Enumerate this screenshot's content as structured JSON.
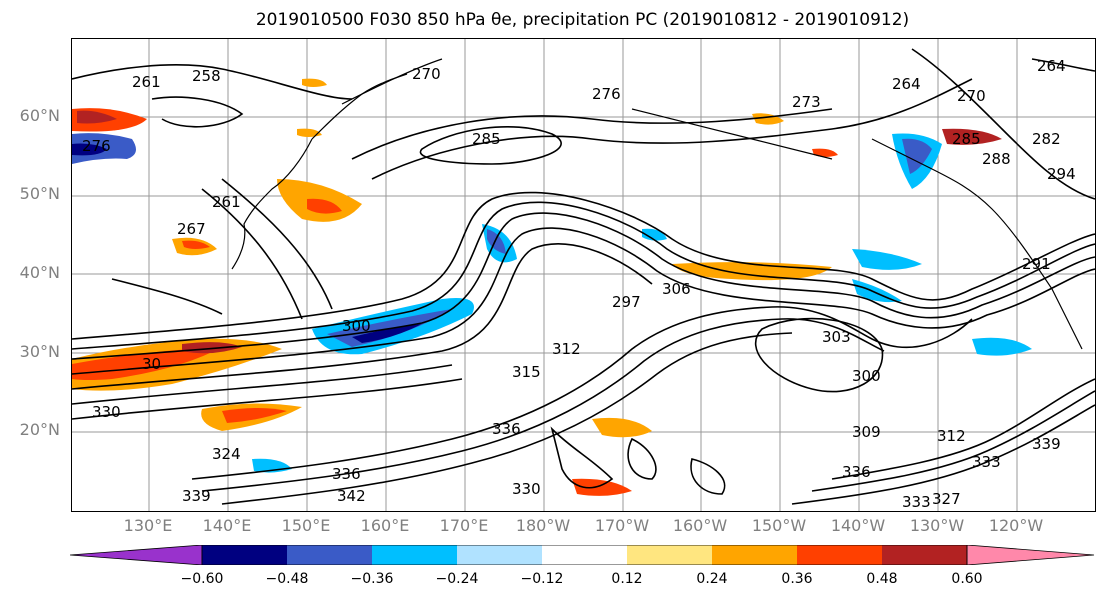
{
  "title": "2019010500 F030 850 hPa θe, precipitation PC (2019010812 - 2019010912)",
  "map": {
    "lat_labels": [
      "60°N",
      "50°N",
      "40°N",
      "30°N",
      "20°N"
    ],
    "lon_labels": [
      "130°E",
      "140°E",
      "150°E",
      "160°E",
      "170°E",
      "180°W",
      "170°W",
      "160°W",
      "150°W",
      "140°W",
      "130°W",
      "120°W"
    ],
    "contour_labels": [
      "261",
      "258",
      "270",
      "276",
      "285",
      "273",
      "264",
      "264",
      "261",
      "267",
      "276",
      "300",
      "297",
      "306",
      "303",
      "300",
      "312",
      "315",
      "330",
      "324",
      "336",
      "330",
      "339",
      "342",
      "336",
      "309",
      "312",
      "333",
      "339",
      "333",
      "327",
      "336",
      "291",
      "294",
      "288",
      "285",
      "282",
      "270",
      "30"
    ]
  },
  "colorbar": {
    "ticks": [
      "−0.60",
      "−0.48",
      "−0.36",
      "−0.24",
      "−0.12",
      "0.12",
      "0.24",
      "0.36",
      "0.48",
      "0.60"
    ],
    "colors": [
      "#9932cc",
      "#000080",
      "#3a5bc7",
      "#00bfff",
      "#b0e2ff",
      "#ffffff",
      "#ffe680",
      "#ffa500",
      "#ff4000",
      "#b22222",
      "#ff88aa"
    ]
  }
}
